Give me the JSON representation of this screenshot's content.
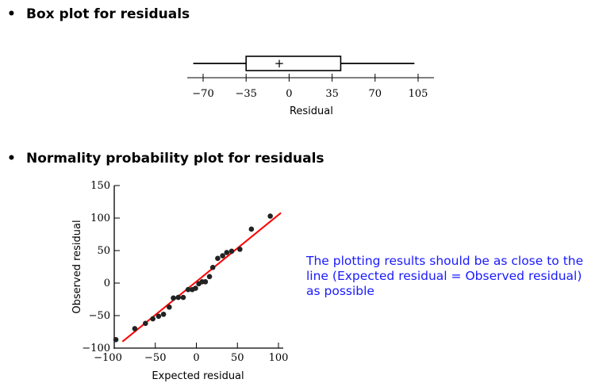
{
  "bullets": {
    "box": {
      "marker": "•",
      "text": "Box plot for residuals"
    },
    "normal": {
      "marker": "•",
      "text": "Normality probability plot for residuals"
    }
  },
  "note": "The plotting results should be as close to the line (Expected residual = Observed residual) as possible",
  "chart_data": [
    {
      "type": "box",
      "xlabel": "Residual",
      "ticks": [
        -70,
        -35,
        0,
        35,
        70,
        105
      ],
      "tick_labels": [
        "−70",
        "−35",
        "0",
        "35",
        "70",
        "105"
      ],
      "xlim": [
        -70,
        105
      ],
      "whisker_low": -78,
      "q1": -35,
      "q3": 42,
      "whisker_high": 102,
      "mean": -8,
      "mean_marker": "+"
    },
    {
      "type": "scatter",
      "xlabel": "Expected residual",
      "ylabel": "Observed residual",
      "xlim": [
        -100,
        100
      ],
      "ylim": [
        -100,
        150
      ],
      "xticks": [
        -100,
        -50,
        0,
        50,
        100
      ],
      "xtick_labels": [
        "−100",
        "−50",
        "0",
        "50",
        "100"
      ],
      "yticks": [
        -100,
        -50,
        0,
        50,
        100,
        150
      ],
      "ytick_labels": [
        "−100",
        "−50",
        "0",
        "50",
        "100",
        "150"
      ],
      "reference_line": {
        "from": [
          -90,
          -90
        ],
        "to": [
          103,
          108
        ],
        "color": "#ff0000"
      },
      "points": [
        [
          -98,
          -87
        ],
        [
          -75,
          -70
        ],
        [
          -62,
          -62
        ],
        [
          -53,
          -55
        ],
        [
          -46,
          -51
        ],
        [
          -40,
          -48
        ],
        [
          -33,
          -37
        ],
        [
          -28,
          -23
        ],
        [
          -22,
          -22
        ],
        [
          -16,
          -22
        ],
        [
          -10,
          -10
        ],
        [
          -5,
          -10
        ],
        [
          -1,
          -8
        ],
        [
          3,
          -1
        ],
        [
          7,
          2
        ],
        [
          11,
          2
        ],
        [
          16,
          10
        ],
        [
          20,
          24
        ],
        [
          26,
          38
        ],
        [
          32,
          42
        ],
        [
          37,
          47
        ],
        [
          43,
          49
        ],
        [
          53,
          52
        ],
        [
          67,
          83
        ],
        [
          90,
          103
        ]
      ]
    }
  ]
}
